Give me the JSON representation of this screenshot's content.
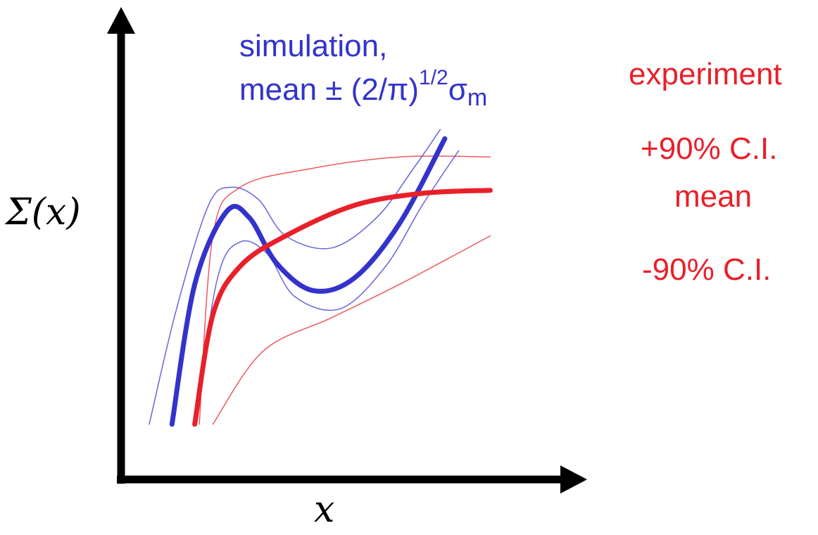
{
  "chart_data": {
    "type": "line",
    "axes": {
      "x_label": "x",
      "y_label": "Σ(x)",
      "ticks": false,
      "grid": false
    },
    "annotations": {
      "simulation_line1": "simulation,",
      "simulation_line2_prefix": "mean ± (2/π)",
      "simulation_sup": "1/2",
      "simulation_sigma": "σ",
      "simulation_sub": "m",
      "experiment": "experiment",
      "ci_upper": "+90% C.I.",
      "ci_mean": "mean",
      "ci_lower": "-90% C.I."
    },
    "colors": {
      "simulation": "#3333cc",
      "experiment": "#e8202a",
      "axis": "#000000"
    },
    "series": [
      {
        "role": "simulation mean",
        "color": "#3333cc",
        "points": [
          [
            0.05,
            0.02
          ],
          [
            0.1,
            0.48
          ],
          [
            0.17,
            0.72
          ],
          [
            0.22,
            0.7
          ],
          [
            0.28,
            0.55
          ],
          [
            0.36,
            0.46
          ],
          [
            0.45,
            0.5
          ],
          [
            0.55,
            0.68
          ],
          [
            0.65,
            0.96
          ]
        ]
      },
      {
        "role": "simulation upper",
        "color": "#3333cc",
        "points": [
          [
            0.0,
            0.02
          ],
          [
            0.06,
            0.4
          ],
          [
            0.13,
            0.74
          ],
          [
            0.18,
            0.8
          ],
          [
            0.24,
            0.76
          ],
          [
            0.3,
            0.64
          ],
          [
            0.4,
            0.6
          ],
          [
            0.5,
            0.7
          ],
          [
            0.58,
            0.86
          ],
          [
            0.64,
            0.99
          ]
        ]
      },
      {
        "role": "simulation lower",
        "color": "#3333cc",
        "points": [
          [
            0.1,
            0.02
          ],
          [
            0.15,
            0.5
          ],
          [
            0.2,
            0.62
          ],
          [
            0.26,
            0.58
          ],
          [
            0.32,
            0.44
          ],
          [
            0.42,
            0.4
          ],
          [
            0.52,
            0.54
          ],
          [
            0.6,
            0.74
          ],
          [
            0.68,
            0.92
          ]
        ]
      },
      {
        "role": "experiment mean",
        "color": "#e8202a",
        "points": [
          [
            0.1,
            0.02
          ],
          [
            0.14,
            0.38
          ],
          [
            0.2,
            0.54
          ],
          [
            0.3,
            0.64
          ],
          [
            0.45,
            0.74
          ],
          [
            0.6,
            0.78
          ],
          [
            0.75,
            0.79
          ]
        ]
      },
      {
        "role": "experiment +90% C.I.",
        "color": "#e8202a",
        "points": [
          [
            0.11,
            0.02
          ],
          [
            0.14,
            0.64
          ],
          [
            0.2,
            0.8
          ],
          [
            0.35,
            0.86
          ],
          [
            0.55,
            0.9
          ],
          [
            0.75,
            0.9
          ]
        ]
      },
      {
        "role": "experiment -90% C.I.",
        "color": "#e8202a",
        "points": [
          [
            0.14,
            0.02
          ],
          [
            0.25,
            0.26
          ],
          [
            0.4,
            0.37
          ],
          [
            0.55,
            0.48
          ],
          [
            0.75,
            0.64
          ]
        ]
      }
    ]
  }
}
